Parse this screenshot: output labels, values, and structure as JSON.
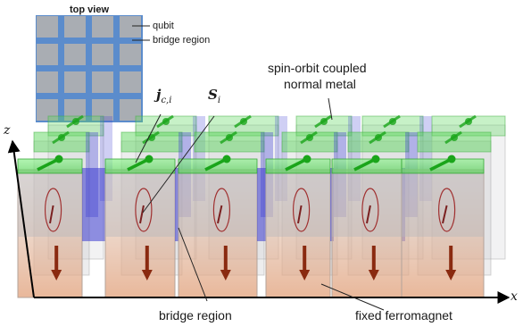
{
  "inset": {
    "title": "top view",
    "legend": [
      {
        "label": "qubit",
        "color": "#a9adb3"
      },
      {
        "label": "bridge region",
        "color": "#5b8ccc"
      }
    ]
  },
  "labels": {
    "spin_orbit_line1": "spin-orbit coupled",
    "spin_orbit_line2": "normal metal",
    "current_symbol": "j",
    "current_subscript": "c,i",
    "spin_symbol": "S",
    "spin_subscript": "i",
    "bridge_region": "bridge region",
    "fixed_ferromagnet": "fixed ferromagnet"
  },
  "axes": {
    "z": "z",
    "x": "x"
  },
  "colors": {
    "green_layer": "#5fd75f",
    "blue_bridge": "#3a3ad0",
    "gray_block": "#b8b8bc",
    "copper_ferromagnet": "#e7b79a",
    "arrow_dark_red": "#8a2a10",
    "spin_green": "#1aa51a"
  }
}
